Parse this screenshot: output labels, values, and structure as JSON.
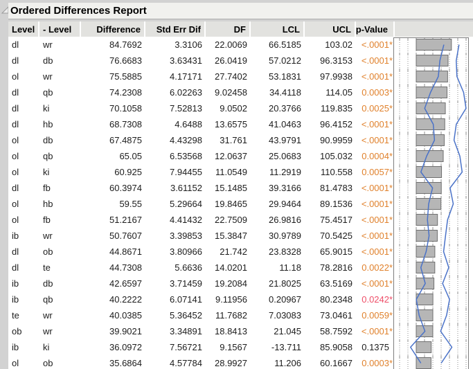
{
  "report": {
    "title": "Ordered Differences Report",
    "disclosure_icon": "open-triangle"
  },
  "table": {
    "columns": [
      "Level",
      "- Level",
      "Difference",
      "Std Err Dif",
      "DF",
      "LCL",
      "UCL",
      "p-Value"
    ],
    "rows": [
      {
        "level": "dl",
        "minus_level": "wr",
        "difference": "84.7692",
        "std_err_dif": "3.3106",
        "df": "22.0069",
        "lcl": "66.5185",
        "ucl": "103.02",
        "p_value": "<.0001",
        "star": "*",
        "p_color": "orange"
      },
      {
        "level": "dl",
        "minus_level": "db",
        "difference": "76.6683",
        "std_err_dif": "3.63431",
        "df": "26.0419",
        "lcl": "57.0212",
        "ucl": "96.3153",
        "p_value": "<.0001",
        "star": "*",
        "p_color": "orange"
      },
      {
        "level": "ol",
        "minus_level": "wr",
        "difference": "75.5885",
        "std_err_dif": "4.17171",
        "df": "27.7402",
        "lcl": "53.1831",
        "ucl": "97.9938",
        "p_value": "<.0001",
        "star": "*",
        "p_color": "orange"
      },
      {
        "level": "dl",
        "minus_level": "qb",
        "difference": "74.2308",
        "std_err_dif": "6.02263",
        "df": "9.02458",
        "lcl": "34.4118",
        "ucl": "114.05",
        "p_value": "0.0003",
        "star": "*",
        "p_color": "orange"
      },
      {
        "level": "dl",
        "minus_level": "ki",
        "difference": "70.1058",
        "std_err_dif": "7.52813",
        "df": "9.0502",
        "lcl": "20.3766",
        "ucl": "119.835",
        "p_value": "0.0025",
        "star": "*",
        "p_color": "orange"
      },
      {
        "level": "dl",
        "minus_level": "hb",
        "difference": "68.7308",
        "std_err_dif": "4.6488",
        "df": "13.6575",
        "lcl": "41.0463",
        "ucl": "96.4152",
        "p_value": "<.0001",
        "star": "*",
        "p_color": "orange"
      },
      {
        "level": "ol",
        "minus_level": "db",
        "difference": "67.4875",
        "std_err_dif": "4.43298",
        "df": "31.761",
        "lcl": "43.9791",
        "ucl": "90.9959",
        "p_value": "<.0001",
        "star": "*",
        "p_color": "orange"
      },
      {
        "level": "ol",
        "minus_level": "qb",
        "difference": "65.05",
        "std_err_dif": "6.53568",
        "df": "12.0637",
        "lcl": "25.0683",
        "ucl": "105.032",
        "p_value": "0.0004",
        "star": "*",
        "p_color": "orange"
      },
      {
        "level": "ol",
        "minus_level": "ki",
        "difference": "60.925",
        "std_err_dif": "7.94455",
        "df": "11.0549",
        "lcl": "11.2919",
        "ucl": "110.558",
        "p_value": "0.0057",
        "star": "*",
        "p_color": "orange"
      },
      {
        "level": "dl",
        "minus_level": "fb",
        "difference": "60.3974",
        "std_err_dif": "3.61152",
        "df": "15.1485",
        "lcl": "39.3166",
        "ucl": "81.4783",
        "p_value": "<.0001",
        "star": "*",
        "p_color": "orange"
      },
      {
        "level": "ol",
        "minus_level": "hb",
        "difference": "59.55",
        "std_err_dif": "5.29664",
        "df": "19.8465",
        "lcl": "29.9464",
        "ucl": "89.1536",
        "p_value": "<.0001",
        "star": "*",
        "p_color": "orange"
      },
      {
        "level": "ol",
        "minus_level": "fb",
        "difference": "51.2167",
        "std_err_dif": "4.41432",
        "df": "22.7509",
        "lcl": "26.9816",
        "ucl": "75.4517",
        "p_value": "<.0001",
        "star": "*",
        "p_color": "orange"
      },
      {
        "level": "ib",
        "minus_level": "wr",
        "difference": "50.7607",
        "std_err_dif": "3.39853",
        "df": "15.3847",
        "lcl": "30.9789",
        "ucl": "70.5425",
        "p_value": "<.0001",
        "star": "*",
        "p_color": "orange"
      },
      {
        "level": "dl",
        "minus_level": "ob",
        "difference": "44.8671",
        "std_err_dif": "3.80966",
        "df": "21.742",
        "lcl": "23.8328",
        "ucl": "65.9015",
        "p_value": "<.0001",
        "star": "*",
        "p_color": "orange"
      },
      {
        "level": "dl",
        "minus_level": "te",
        "difference": "44.7308",
        "std_err_dif": "5.6636",
        "df": "14.0201",
        "lcl": "11.18",
        "ucl": "78.2816",
        "p_value": "0.0022",
        "star": "*",
        "p_color": "orange"
      },
      {
        "level": "ib",
        "minus_level": "db",
        "difference": "42.6597",
        "std_err_dif": "3.71459",
        "df": "19.2084",
        "lcl": "21.8025",
        "ucl": "63.5169",
        "p_value": "<.0001",
        "star": "*",
        "p_color": "orange"
      },
      {
        "level": "ib",
        "minus_level": "qb",
        "difference": "40.2222",
        "std_err_dif": "6.07141",
        "df": "9.11956",
        "lcl": "0.20967",
        "ucl": "80.2348",
        "p_value": "0.0242",
        "star": "*",
        "p_color": "pink"
      },
      {
        "level": "te",
        "minus_level": "wr",
        "difference": "40.0385",
        "std_err_dif": "5.36452",
        "df": "11.7682",
        "lcl": "7.03083",
        "ucl": "73.0461",
        "p_value": "0.0059",
        "star": "*",
        "p_color": "orange"
      },
      {
        "level": "ob",
        "minus_level": "wr",
        "difference": "39.9021",
        "std_err_dif": "3.34891",
        "df": "18.8413",
        "lcl": "21.045",
        "ucl": "58.7592",
        "p_value": "<.0001",
        "star": "*",
        "p_color": "orange"
      },
      {
        "level": "ib",
        "minus_level": "ki",
        "difference": "36.0972",
        "std_err_dif": "7.56721",
        "df": "9.1567",
        "lcl": "-13.711",
        "ucl": "85.9058",
        "p_value": "0.1375",
        "star": "",
        "p_color": "default"
      },
      {
        "level": "ol",
        "minus_level": "ob",
        "difference": "35.6864",
        "std_err_dif": "4.57784",
        "df": "28.9927",
        "lcl": "11.206",
        "ucl": "60.1667",
        "p_value": "0.0003",
        "star": "*",
        "p_color": "orange"
      }
    ]
  },
  "chart_data": {
    "type": "bar",
    "orientation": "horizontal",
    "title": "",
    "xlabel": "Difference",
    "ylabel": "",
    "xlim": [
      -55,
      125
    ],
    "gridlines": [
      -40,
      -20,
      0,
      20,
      40,
      60,
      80,
      100,
      120
    ],
    "grid": "dotted-vertical",
    "legend_position": "none",
    "categories": [
      "dl-wr",
      "dl-db",
      "ol-wr",
      "dl-qb",
      "dl-ki",
      "dl-hb",
      "ol-db",
      "ol-qb",
      "ol-ki",
      "dl-fb",
      "ol-hb",
      "ol-fb",
      "ib-wr",
      "dl-ob",
      "dl-te",
      "ib-db",
      "ib-qb",
      "te-wr",
      "ob-wr",
      "ib-ki",
      "ol-ob"
    ],
    "series": [
      {
        "name": "Difference",
        "style": "bar",
        "values": [
          84.7692,
          76.6683,
          75.5885,
          74.2308,
          70.1058,
          68.7308,
          67.4875,
          65.05,
          60.925,
          60.3974,
          59.55,
          51.2167,
          50.7607,
          44.8671,
          44.7308,
          42.6597,
          40.2222,
          40.0385,
          39.9021,
          36.0972,
          35.6864
        ]
      },
      {
        "name": "LCL",
        "style": "line",
        "values": [
          66.5185,
          57.0212,
          53.1831,
          34.4118,
          20.3766,
          41.0463,
          43.9791,
          25.0683,
          11.2919,
          39.3166,
          29.9464,
          26.9816,
          30.9789,
          23.8328,
          11.18,
          21.8025,
          0.20967,
          7.03083,
          21.045,
          -13.711,
          11.206
        ]
      },
      {
        "name": "UCL",
        "style": "line",
        "values": [
          103.02,
          96.3153,
          97.9938,
          114.05,
          119.835,
          96.4152,
          90.9959,
          105.032,
          110.558,
          81.4783,
          89.1536,
          75.4517,
          70.5425,
          65.9015,
          78.2816,
          63.5169,
          80.2348,
          73.0461,
          58.7592,
          85.9058,
          60.1667
        ]
      }
    ]
  },
  "colors": {
    "page_bg": "#d2d2d2",
    "title_bg": "#f1f1ee",
    "header_bg": "#e2e2df",
    "body_bg": "#ffffff",
    "text": "#1c1c1c",
    "p_orange": "#e0812c",
    "p_pink": "#ee4e68",
    "p_default": "#1c1c1c",
    "bar_fill": "#b6b6b6",
    "bar_stroke": "#6f6f6f",
    "grid_line": "#8f8f8f",
    "ci_line_blue": "#4a72c8",
    "plot_border": "#7d7d7d",
    "triangle_gray": "#9a9a9a"
  }
}
